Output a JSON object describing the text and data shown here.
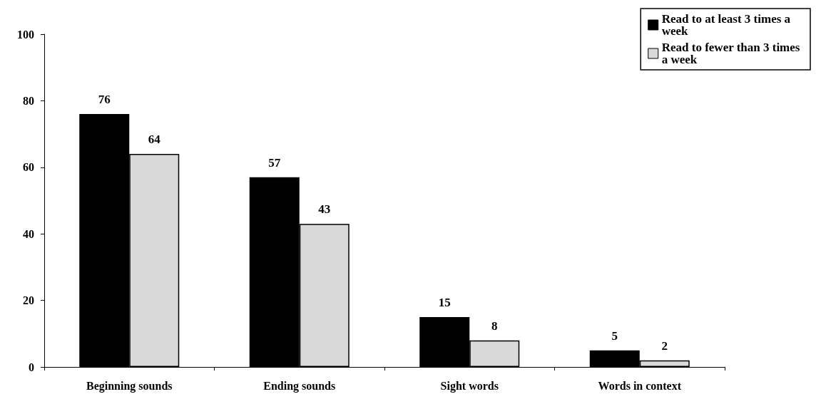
{
  "chart_data": {
    "type": "bar",
    "categories": [
      "Beginning sounds",
      "Ending sounds",
      "Sight words",
      "Words in context"
    ],
    "series": [
      {
        "name": "Read to at least 3 times a week",
        "color": "#000000",
        "values": [
          76,
          57,
          15,
          5
        ]
      },
      {
        "name": "Read to fewer than 3 times a week",
        "color": "#d9d9d9",
        "values": [
          64,
          43,
          8,
          2
        ]
      }
    ],
    "ylim": [
      0,
      100
    ],
    "yticks": [
      0,
      20,
      40,
      60,
      80,
      100
    ],
    "data_labels": true,
    "grid": false,
    "legend": "top right"
  }
}
